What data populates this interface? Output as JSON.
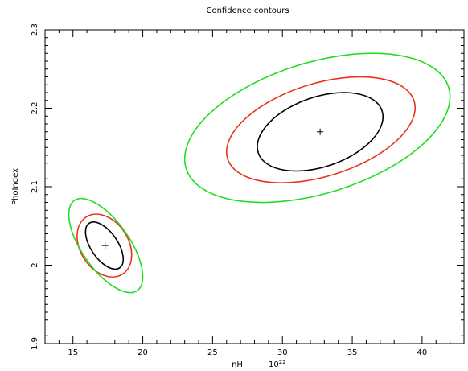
{
  "chart_data": {
    "type": "contour",
    "title": "Confidence contours",
    "xlabel": "nH",
    "xlabel_unit": "10^22",
    "xlabel_unit_display": "10",
    "xlabel_unit_exp": "22",
    "ylabel": "PhoIndex",
    "xlim": [
      13,
      43
    ],
    "ylim": [
      1.9,
      2.3
    ],
    "xticks": [
      15,
      20,
      25,
      30,
      35,
      40
    ],
    "xtick_labels": [
      "15",
      "20",
      "25",
      "30",
      "35",
      "40"
    ],
    "yticks": [
      1.9,
      2.0,
      2.1,
      2.2,
      2.3
    ],
    "ytick_labels": [
      "1.9",
      "2",
      "2.1",
      "2.2",
      "2.3"
    ],
    "grid": false,
    "contour_colors": [
      "#000000",
      "#e8321e",
      "#22dd22"
    ],
    "sets": [
      {
        "best_fit": {
          "x": 17.3,
          "y": 2.025
        },
        "contours": [
          {
            "color": "#000000",
            "x_range": [
              15.9,
              18.6
            ],
            "y_range": [
              1.995,
              2.055
            ]
          },
          {
            "color": "#e8321e",
            "x_range": [
              15.3,
              19.2
            ],
            "y_range": [
              1.985,
              2.065
            ]
          },
          {
            "color": "#22dd22",
            "x_range": [
              14.7,
              20.0
            ],
            "y_range": [
              1.965,
              2.085
            ]
          }
        ]
      },
      {
        "best_fit": {
          "x": 32.7,
          "y": 2.17
        },
        "contours": [
          {
            "color": "#000000",
            "x_range": [
              28.2,
              37.2
            ],
            "y_range": [
              2.12,
              2.22
            ]
          },
          {
            "color": "#e8321e",
            "x_range": [
              26.0,
              39.5
            ],
            "y_range": [
              2.105,
              2.24
            ]
          },
          {
            "color": "#22dd22",
            "x_range": [
              23.0,
              42.0
            ],
            "y_range": [
              2.08,
              2.27
            ]
          }
        ]
      }
    ]
  }
}
